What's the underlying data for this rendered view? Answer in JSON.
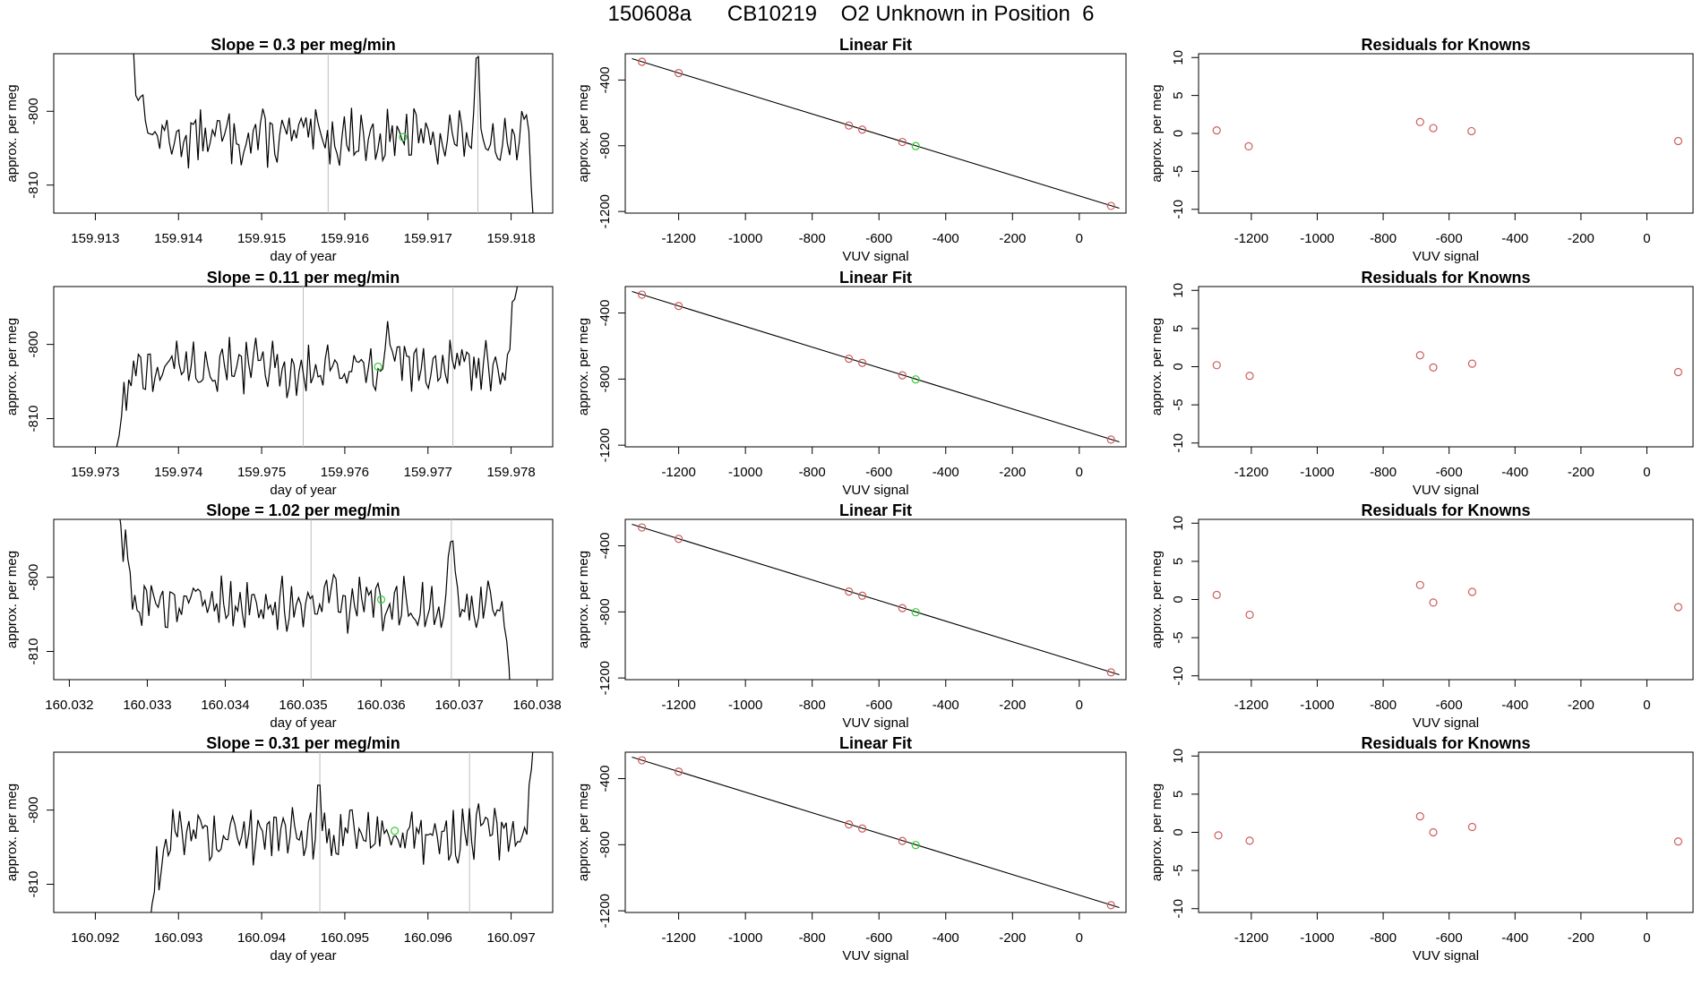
{
  "page_title": "150608a      CB10219    O2 Unknown in Position  6",
  "colors": {
    "line": "#000000",
    "known_point": "#cd5c5c",
    "unknown_point": "#32cd32",
    "marker_line": "#bebebe",
    "frame": "#000000"
  },
  "chart_data": [
    {
      "panel": "timeseries",
      "row": 1,
      "type": "line",
      "title": "Slope =  0.3  per meg/min",
      "xlabel": "day of year",
      "ylabel": "approx. per meg",
      "xlim": [
        159.9125,
        159.9185
      ],
      "ylim": [
        -813.8,
        -792.2
      ],
      "xticks": [
        159.913,
        159.914,
        159.915,
        159.916,
        159.917,
        159.918
      ],
      "xtick_labels": [
        "159.913",
        "159.914",
        "159.915",
        "159.916",
        "159.917",
        "159.918"
      ],
      "yticks": [
        -810,
        -800
      ],
      "ytick_labels": [
        "-810",
        "-800"
      ],
      "start_x": 159.9134,
      "end_x": 159.9183,
      "pre_shape": "down",
      "post_shape": "down",
      "vlines": [
        159.9158,
        159.9176
      ],
      "unknown_point": {
        "x": 159.9167,
        "y": -803.5
      },
      "baseline": -803.5,
      "notable_spikes": [
        {
          "x": 159.9176,
          "y": -795.2
        },
        {
          "x": 159.9182,
          "y": -799.2
        }
      ]
    },
    {
      "panel": "linear_fit",
      "row": 1,
      "type": "scatter",
      "title": "Linear Fit",
      "xlabel": "VUV signal",
      "ylabel": "approx. per meg",
      "xlim": [
        -1360,
        140
      ],
      "ylim": [
        -1210,
        -240
      ],
      "xticks": [
        -1200,
        -1000,
        -800,
        -600,
        -400,
        -200,
        0
      ],
      "xtick_labels": [
        "-1200",
        "-1000",
        "-800",
        "-600",
        "-400",
        "-200",
        "0"
      ],
      "yticks": [
        -1200,
        -800,
        -400
      ],
      "ytick_labels": [
        "-1200",
        "-800",
        "-400"
      ],
      "fit_line": [
        {
          "x": -1340,
          "y": -270
        },
        {
          "x": 120,
          "y": -1180
        }
      ],
      "known_points": [
        {
          "x": -1310,
          "y": -289
        },
        {
          "x": -1200,
          "y": -358
        },
        {
          "x": -690,
          "y": -677
        },
        {
          "x": -650,
          "y": -702
        },
        {
          "x": -530,
          "y": -777
        },
        {
          "x": 95,
          "y": -1166
        }
      ],
      "unknown_points": [
        {
          "x": -490,
          "y": -802
        }
      ]
    },
    {
      "panel": "residuals",
      "row": 1,
      "type": "scatter",
      "title": "Residuals for Knowns",
      "xlabel": "VUV signal",
      "ylabel": "approx. per meg",
      "xlim": [
        -1360,
        140
      ],
      "ylim": [
        -10.5,
        10.5
      ],
      "xticks": [
        -1200,
        -1000,
        -800,
        -600,
        -400,
        -200,
        0
      ],
      "xtick_labels": [
        "-1200",
        "-1000",
        "-800",
        "-600",
        "-400",
        "-200",
        "0"
      ],
      "yticks": [
        -10,
        -5,
        0,
        5,
        10
      ],
      "ytick_labels": [
        "-10",
        "-5",
        "0",
        "5",
        "10"
      ],
      "points": [
        {
          "x": -1305,
          "y": 0.4
        },
        {
          "x": -1208,
          "y": -1.7
        },
        {
          "x": -688,
          "y": 1.5
        },
        {
          "x": -648,
          "y": 0.7
        },
        {
          "x": -532,
          "y": 0.3
        },
        {
          "x": 95,
          "y": -1.0
        }
      ]
    },
    {
      "panel": "timeseries",
      "row": 2,
      "type": "line",
      "title": "Slope =  0.11  per meg/min",
      "xlabel": "day of year",
      "ylabel": "approx. per meg",
      "xlim": [
        159.9725,
        159.9785
      ],
      "ylim": [
        -813.8,
        -792.2
      ],
      "xticks": [
        159.973,
        159.974,
        159.975,
        159.976,
        159.977,
        159.978
      ],
      "xtick_labels": [
        "159.973",
        "159.974",
        "159.975",
        "159.976",
        "159.977",
        "159.978"
      ],
      "yticks": [
        -810,
        -800
      ],
      "ytick_labels": [
        "-810",
        "-800"
      ],
      "start_x": 159.9732,
      "end_x": 159.9781,
      "pre_shape": "up",
      "post_shape": "up",
      "vlines": [
        159.9755,
        159.9773
      ],
      "unknown_point": {
        "x": 159.9764,
        "y": -803.0
      },
      "baseline": -803.0,
      "notable_spikes": [
        {
          "x": 159.9765,
          "y": -798.0
        }
      ]
    },
    {
      "panel": "linear_fit",
      "row": 2,
      "type": "scatter",
      "title": "Linear Fit",
      "xlabel": "VUV signal",
      "ylabel": "approx. per meg",
      "xlim": [
        -1360,
        140
      ],
      "ylim": [
        -1210,
        -240
      ],
      "xticks": [
        -1200,
        -1000,
        -800,
        -600,
        -400,
        -200,
        0
      ],
      "xtick_labels": [
        "-1200",
        "-1000",
        "-800",
        "-600",
        "-400",
        "-200",
        "0"
      ],
      "yticks": [
        -1200,
        -800,
        -400
      ],
      "ytick_labels": [
        "-1200",
        "-800",
        "-400"
      ],
      "fit_line": [
        {
          "x": -1340,
          "y": -270
        },
        {
          "x": 120,
          "y": -1180
        }
      ],
      "known_points": [
        {
          "x": -1310,
          "y": -289
        },
        {
          "x": -1200,
          "y": -358
        },
        {
          "x": -690,
          "y": -677
        },
        {
          "x": -650,
          "y": -702
        },
        {
          "x": -530,
          "y": -777
        },
        {
          "x": 95,
          "y": -1166
        }
      ],
      "unknown_points": [
        {
          "x": -490,
          "y": -802
        }
      ]
    },
    {
      "panel": "residuals",
      "row": 2,
      "type": "scatter",
      "title": "Residuals for Knowns",
      "xlabel": "VUV signal",
      "ylabel": "approx. per meg",
      "xlim": [
        -1360,
        140
      ],
      "ylim": [
        -10.5,
        10.5
      ],
      "xticks": [
        -1200,
        -1000,
        -800,
        -600,
        -400,
        -200,
        0
      ],
      "xtick_labels": [
        "-1200",
        "-1000",
        "-800",
        "-600",
        "-400",
        "-200",
        "0"
      ],
      "yticks": [
        -10,
        -5,
        0,
        5,
        10
      ],
      "ytick_labels": [
        "-10",
        "-5",
        "0",
        "5",
        "10"
      ],
      "points": [
        {
          "x": -1305,
          "y": 0.2
        },
        {
          "x": -1205,
          "y": -1.2
        },
        {
          "x": -688,
          "y": 1.5
        },
        {
          "x": -648,
          "y": -0.1
        },
        {
          "x": -530,
          "y": 0.4
        },
        {
          "x": 95,
          "y": -0.7
        }
      ]
    },
    {
      "panel": "timeseries",
      "row": 3,
      "type": "line",
      "title": "Slope =  1.02  per meg/min",
      "xlabel": "day of year",
      "ylabel": "approx. per meg",
      "xlim": [
        160.0318,
        160.0382
      ],
      "ylim": [
        -813.8,
        -792.2
      ],
      "xticks": [
        160.032,
        160.033,
        160.034,
        160.035,
        160.036,
        160.037,
        160.038
      ],
      "xtick_labels": [
        "160.032",
        "160.033",
        "160.034",
        "160.035",
        "160.036",
        "160.037",
        "160.038"
      ],
      "yticks": [
        -810,
        -800
      ],
      "ytick_labels": [
        "-810",
        "-800"
      ],
      "start_x": 160.0326,
      "end_x": 160.0377,
      "pre_shape": "down",
      "post_shape": "down",
      "vlines": [
        160.0351,
        160.0369
      ],
      "unknown_point": {
        "x": 160.036,
        "y": -803.0
      },
      "baseline": -803.5,
      "notable_spikes": [
        {
          "x": 160.0369,
          "y": -796.0
        }
      ]
    },
    {
      "panel": "linear_fit",
      "row": 3,
      "type": "scatter",
      "title": "Linear Fit",
      "xlabel": "VUV signal",
      "ylabel": "approx. per meg",
      "xlim": [
        -1360,
        140
      ],
      "ylim": [
        -1210,
        -240
      ],
      "xticks": [
        -1200,
        -1000,
        -800,
        -600,
        -400,
        -200,
        0
      ],
      "xtick_labels": [
        "-1200",
        "-1000",
        "-800",
        "-600",
        "-400",
        "-200",
        "0"
      ],
      "yticks": [
        -1200,
        -800,
        -400
      ],
      "ytick_labels": [
        "-1200",
        "-800",
        "-400"
      ],
      "fit_line": [
        {
          "x": -1340,
          "y": -270
        },
        {
          "x": 120,
          "y": -1180
        }
      ],
      "known_points": [
        {
          "x": -1310,
          "y": -289
        },
        {
          "x": -1200,
          "y": -358
        },
        {
          "x": -690,
          "y": -677
        },
        {
          "x": -650,
          "y": -702
        },
        {
          "x": -530,
          "y": -777
        },
        {
          "x": 95,
          "y": -1166
        }
      ],
      "unknown_points": [
        {
          "x": -490,
          "y": -802
        }
      ]
    },
    {
      "panel": "residuals",
      "row": 3,
      "type": "scatter",
      "title": "Residuals for Knowns",
      "xlabel": "VUV signal",
      "ylabel": "approx. per meg",
      "xlim": [
        -1360,
        140
      ],
      "ylim": [
        -10.5,
        10.5
      ],
      "xticks": [
        -1200,
        -1000,
        -800,
        -600,
        -400,
        -200,
        0
      ],
      "xtick_labels": [
        "-1200",
        "-1000",
        "-800",
        "-600",
        "-400",
        "-200",
        "0"
      ],
      "yticks": [
        -10,
        -5,
        0,
        5,
        10
      ],
      "ytick_labels": [
        "-10",
        "-5",
        "0",
        "5",
        "10"
      ],
      "points": [
        {
          "x": -1305,
          "y": 0.6
        },
        {
          "x": -1205,
          "y": -2.0
        },
        {
          "x": -688,
          "y": 1.9
        },
        {
          "x": -648,
          "y": -0.4
        },
        {
          "x": -530,
          "y": 1.0
        },
        {
          "x": 95,
          "y": -1.0
        }
      ]
    },
    {
      "panel": "timeseries",
      "row": 4,
      "type": "line",
      "title": "Slope =  0.31  per meg/min",
      "xlabel": "day of year",
      "ylabel": "approx. per meg",
      "xlim": [
        160.0915,
        160.0975
      ],
      "ylim": [
        -813.8,
        -792.2
      ],
      "xticks": [
        160.092,
        160.093,
        160.094,
        160.095,
        160.096,
        160.097
      ],
      "xtick_labels": [
        "160.092",
        "160.093",
        "160.094",
        "160.095",
        "160.096",
        "160.097"
      ],
      "yticks": [
        -810,
        -800
      ],
      "ytick_labels": [
        "-810",
        "-800"
      ],
      "start_x": 160.0926,
      "end_x": 160.0973,
      "pre_shape": "up",
      "post_shape": "up",
      "vlines": [
        160.0947,
        160.0965
      ],
      "unknown_point": {
        "x": 160.0956,
        "y": -802.8
      },
      "baseline": -803.3,
      "notable_spikes": [
        {
          "x": 160.0947,
          "y": -798.5
        }
      ]
    },
    {
      "panel": "linear_fit",
      "row": 4,
      "type": "scatter",
      "title": "Linear Fit",
      "xlabel": "VUV signal",
      "ylabel": "approx. per meg",
      "xlim": [
        -1360,
        140
      ],
      "ylim": [
        -1210,
        -240
      ],
      "xticks": [
        -1200,
        -1000,
        -800,
        -600,
        -400,
        -200,
        0
      ],
      "xtick_labels": [
        "-1200",
        "-1000",
        "-800",
        "-600",
        "-400",
        "-200",
        "0"
      ],
      "yticks": [
        -1200,
        -800,
        -400
      ],
      "ytick_labels": [
        "-1200",
        "-800",
        "-400"
      ],
      "fit_line": [
        {
          "x": -1340,
          "y": -270
        },
        {
          "x": 120,
          "y": -1180
        }
      ],
      "known_points": [
        {
          "x": -1310,
          "y": -289
        },
        {
          "x": -1200,
          "y": -358
        },
        {
          "x": -690,
          "y": -677
        },
        {
          "x": -650,
          "y": -702
        },
        {
          "x": -530,
          "y": -777
        },
        {
          "x": 95,
          "y": -1166
        }
      ],
      "unknown_points": [
        {
          "x": -490,
          "y": -802
        }
      ]
    },
    {
      "panel": "residuals",
      "row": 4,
      "type": "scatter",
      "title": "Residuals for Knowns",
      "xlabel": "VUV signal",
      "ylabel": "approx. per meg",
      "xlim": [
        -1360,
        140
      ],
      "ylim": [
        -10.5,
        10.5
      ],
      "xticks": [
        -1200,
        -1000,
        -800,
        -600,
        -400,
        -200,
        0
      ],
      "xtick_labels": [
        "-1200",
        "-1000",
        "-800",
        "-600",
        "-400",
        "-200",
        "0"
      ],
      "yticks": [
        -10,
        -5,
        0,
        5,
        10
      ],
      "ytick_labels": [
        "-10",
        "-5",
        "0",
        "5",
        "10"
      ],
      "points": [
        {
          "x": -1300,
          "y": -0.4
        },
        {
          "x": -1205,
          "y": -1.1
        },
        {
          "x": -688,
          "y": 2.1
        },
        {
          "x": -648,
          "y": 0.0
        },
        {
          "x": -530,
          "y": 0.7
        },
        {
          "x": 95,
          "y": -1.2
        }
      ]
    }
  ]
}
